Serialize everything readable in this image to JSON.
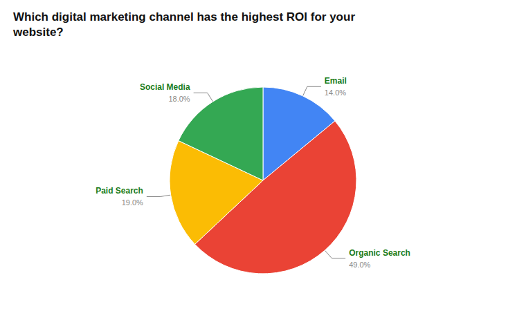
{
  "chart_data": {
    "type": "pie",
    "title": "Which digital marketing channel has the highest ROI for your\nwebsite?",
    "categories": [
      "Email",
      "Organic Search",
      "Paid Search",
      "Social Media"
    ],
    "values": [
      14.0,
      49.0,
      19.0,
      18.0
    ],
    "value_labels": [
      "14.0%",
      "49.0%",
      "19.0%",
      "18.0%"
    ],
    "colors": [
      "#4285F4",
      "#EA4335",
      "#FBBC04",
      "#34A853"
    ],
    "data_labels": true
  }
}
